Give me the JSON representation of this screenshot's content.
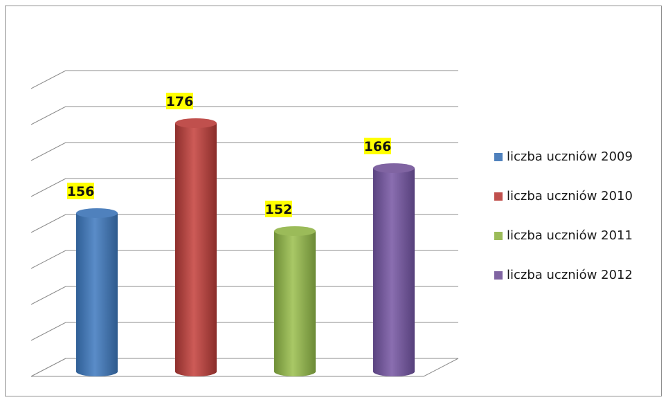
{
  "chart_data": {
    "type": "bar",
    "style": "3d-cylinder",
    "categories": [
      "liczba uczniów 2009",
      "liczba uczniów 2010",
      "liczba uczniów 2011",
      "liczba uczniów 2012"
    ],
    "values": [
      156,
      176,
      152,
      166
    ],
    "labels": [
      "156",
      "176",
      "152",
      "166"
    ],
    "colors": [
      "#4f81bd",
      "#c0504d",
      "#9bbb59",
      "#8064a2"
    ],
    "label_background": "#ffff00",
    "ylim": [
      120,
      184
    ],
    "grid": true,
    "legend_position": "right"
  }
}
